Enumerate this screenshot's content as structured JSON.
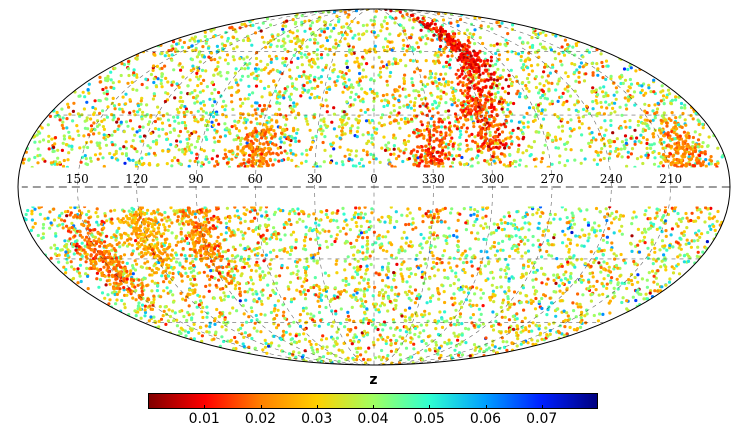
{
  "chart_data": {
    "type": "scatter",
    "projection": "mollweide",
    "coordinate_system": "galactic",
    "lon_tick_labels": [
      "150",
      "120",
      "90",
      "60",
      "30",
      "0",
      "330",
      "300",
      "270",
      "240",
      "210"
    ],
    "lon_ticks": [
      150,
      120,
      90,
      60,
      30,
      0,
      330,
      300,
      270,
      240,
      210
    ],
    "masked_band_deg": [
      -8,
      8
    ],
    "graticule": true,
    "colorbar": {
      "label": "z",
      "range": [
        0.0,
        0.08
      ],
      "tick_values": [
        0.01,
        0.02,
        0.03,
        0.04,
        0.05,
        0.06,
        0.07
      ],
      "tick_labels": [
        "0.01",
        "0.02",
        "0.03",
        "0.04",
        "0.05",
        "0.06",
        "0.07"
      ],
      "colormap": "jet_r",
      "colormap_stops": [
        "#800000",
        "#ff0000",
        "#ff8000",
        "#ffd000",
        "#a0ff60",
        "#30ffd0",
        "#00a0ff",
        "#0020ff",
        "#000080"
      ]
    },
    "points_description_density": "approximately 9000 galaxies, dense across sky except Galactic plane band",
    "structures": [
      {
        "lon": 90,
        "lat": -20,
        "z": 0.02
      },
      {
        "lon": 120,
        "lat": -20,
        "z": 0.025
      },
      {
        "lon": 330,
        "lat": 10,
        "z": 0.015
      },
      {
        "lon": 300,
        "lat": 30,
        "z": 0.015
      },
      {
        "lon": 290,
        "lat": 60,
        "z": 0.01
      },
      {
        "lon": 60,
        "lat": 10,
        "z": 0.02
      },
      {
        "lon": 150,
        "lat": -30,
        "z": 0.02
      },
      {
        "lon": 200,
        "lat": 10,
        "z": 0.02
      }
    ]
  }
}
